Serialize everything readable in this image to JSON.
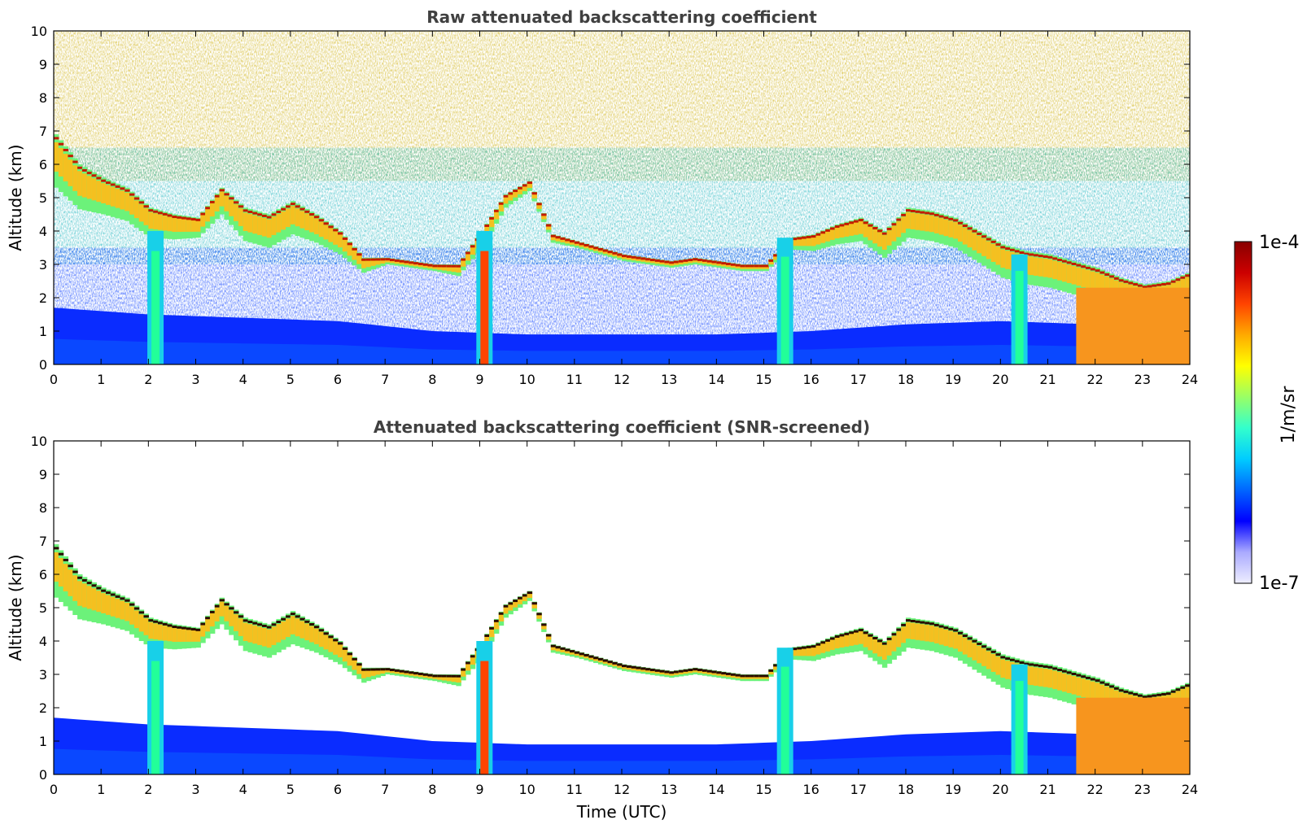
{
  "chart_data": [
    {
      "type": "heatmap",
      "title": "Raw attenuated backscattering coefficient",
      "xlabel": "",
      "ylabel": "Altitude (km)",
      "xlim": [
        0,
        24
      ],
      "ylim": [
        0,
        10
      ],
      "xticks": [
        "0",
        "1",
        "2",
        "3",
        "4",
        "5",
        "6",
        "7",
        "8",
        "9",
        "10",
        "11",
        "12",
        "13",
        "14",
        "15",
        "16",
        "17",
        "18",
        "19",
        "20",
        "21",
        "22",
        "23",
        "24"
      ],
      "yticks": [
        "0",
        "1",
        "2",
        "3",
        "4",
        "5",
        "6",
        "7",
        "8",
        "9",
        "10"
      ],
      "value_scale": "log",
      "noise_above_cloud": true,
      "cloud_layer": {
        "top_km": [
          [
            0,
            6.9
          ],
          [
            0.5,
            6.0
          ],
          [
            1,
            5.6
          ],
          [
            1.5,
            5.3
          ],
          [
            2,
            4.7
          ],
          [
            2.5,
            4.5
          ],
          [
            3,
            4.4
          ],
          [
            3.5,
            5.3
          ],
          [
            4,
            4.7
          ],
          [
            4.5,
            4.5
          ],
          [
            5,
            4.9
          ],
          [
            5.5,
            4.5
          ],
          [
            6,
            4.0
          ],
          [
            6.5,
            3.2
          ],
          [
            7,
            3.2
          ],
          [
            7.5,
            3.1
          ],
          [
            8,
            3.0
          ],
          [
            8.5,
            3.0
          ],
          [
            9,
            4.0
          ],
          [
            9.5,
            5.1
          ],
          [
            10,
            5.5
          ],
          [
            10.5,
            3.9
          ],
          [
            11,
            3.7
          ],
          [
            11.5,
            3.5
          ],
          [
            12,
            3.3
          ],
          [
            12.5,
            3.2
          ],
          [
            13,
            3.1
          ],
          [
            13.5,
            3.2
          ],
          [
            14,
            3.1
          ],
          [
            14.5,
            3.0
          ],
          [
            15,
            3.0
          ],
          [
            15.5,
            3.8
          ],
          [
            16,
            3.9
          ],
          [
            16.5,
            4.2
          ],
          [
            17,
            4.4
          ],
          [
            17.5,
            4.0
          ],
          [
            18,
            4.7
          ],
          [
            18.5,
            4.6
          ],
          [
            19,
            4.4
          ],
          [
            19.5,
            4.0
          ],
          [
            20,
            3.6
          ],
          [
            20.5,
            3.4
          ],
          [
            21,
            3.3
          ],
          [
            21.5,
            3.1
          ],
          [
            22,
            2.9
          ],
          [
            22.5,
            2.6
          ],
          [
            23,
            2.4
          ],
          [
            23.5,
            2.5
          ],
          [
            24,
            2.8
          ]
        ],
        "thickness_km": [
          [
            0,
            1.6
          ],
          [
            1,
            1.1
          ],
          [
            2,
            0.9
          ],
          [
            3,
            0.6
          ],
          [
            4,
            1.0
          ],
          [
            5,
            1.0
          ],
          [
            6,
            0.7
          ],
          [
            7,
            0.2
          ],
          [
            8,
            0.2
          ],
          [
            9,
            0.5
          ],
          [
            10,
            0.3
          ],
          [
            11,
            0.2
          ],
          [
            12,
            0.2
          ],
          [
            13,
            0.2
          ],
          [
            14,
            0.2
          ],
          [
            15,
            0.2
          ],
          [
            16,
            0.5
          ],
          [
            17,
            0.7
          ],
          [
            18,
            0.9
          ],
          [
            19,
            0.9
          ],
          [
            20,
            1.0
          ],
          [
            21,
            1.0
          ],
          [
            22,
            1.0
          ],
          [
            23,
            0.8
          ],
          [
            24,
            0.8
          ]
        ]
      }
    },
    {
      "type": "heatmap",
      "title": "Attenuated backscattering coefficient (SNR-screened)",
      "xlabel": "Time (UTC)",
      "ylabel": "Altitude (km)",
      "xlim": [
        0,
        24
      ],
      "ylim": [
        0,
        10
      ],
      "xticks": [
        "0",
        "1",
        "2",
        "3",
        "4",
        "5",
        "6",
        "7",
        "8",
        "9",
        "10",
        "11",
        "12",
        "13",
        "14",
        "15",
        "16",
        "17",
        "18",
        "19",
        "20",
        "21",
        "22",
        "23",
        "24"
      ],
      "yticks": [
        "0",
        "1",
        "2",
        "3",
        "4",
        "5",
        "6",
        "7",
        "8",
        "9",
        "10"
      ],
      "value_scale": "log",
      "noise_above_cloud": false,
      "cloud_layer": {
        "top_km": [
          [
            0,
            6.9
          ],
          [
            0.5,
            6.0
          ],
          [
            1,
            5.6
          ],
          [
            1.5,
            5.3
          ],
          [
            2,
            4.7
          ],
          [
            2.5,
            4.5
          ],
          [
            3,
            4.4
          ],
          [
            3.5,
            5.3
          ],
          [
            4,
            4.7
          ],
          [
            4.5,
            4.5
          ],
          [
            5,
            4.9
          ],
          [
            5.5,
            4.5
          ],
          [
            6,
            4.0
          ],
          [
            6.5,
            3.2
          ],
          [
            7,
            3.2
          ],
          [
            7.5,
            3.1
          ],
          [
            8,
            3.0
          ],
          [
            8.5,
            3.0
          ],
          [
            9,
            4.0
          ],
          [
            9.5,
            5.1
          ],
          [
            10,
            5.5
          ],
          [
            10.5,
            3.9
          ],
          [
            11,
            3.7
          ],
          [
            11.5,
            3.5
          ],
          [
            12,
            3.3
          ],
          [
            12.5,
            3.2
          ],
          [
            13,
            3.1
          ],
          [
            13.5,
            3.2
          ],
          [
            14,
            3.1
          ],
          [
            14.5,
            3.0
          ],
          [
            15,
            3.0
          ],
          [
            15.5,
            3.8
          ],
          [
            16,
            3.9
          ],
          [
            16.5,
            4.2
          ],
          [
            17,
            4.4
          ],
          [
            17.5,
            4.0
          ],
          [
            18,
            4.7
          ],
          [
            18.5,
            4.6
          ],
          [
            19,
            4.4
          ],
          [
            19.5,
            4.0
          ],
          [
            20,
            3.6
          ],
          [
            20.5,
            3.4
          ],
          [
            21,
            3.3
          ],
          [
            21.5,
            3.1
          ],
          [
            22,
            2.9
          ],
          [
            22.5,
            2.6
          ],
          [
            23,
            2.4
          ],
          [
            23.5,
            2.5
          ],
          [
            24,
            2.8
          ]
        ],
        "thickness_km": [
          [
            0,
            1.6
          ],
          [
            1,
            1.1
          ],
          [
            2,
            0.9
          ],
          [
            3,
            0.6
          ],
          [
            4,
            1.0
          ],
          [
            5,
            1.0
          ],
          [
            6,
            0.7
          ],
          [
            7,
            0.2
          ],
          [
            8,
            0.2
          ],
          [
            9,
            0.5
          ],
          [
            10,
            0.3
          ],
          [
            11,
            0.2
          ],
          [
            12,
            0.2
          ],
          [
            13,
            0.2
          ],
          [
            14,
            0.2
          ],
          [
            15,
            0.2
          ],
          [
            16,
            0.5
          ],
          [
            17,
            0.7
          ],
          [
            18,
            0.9
          ],
          [
            19,
            0.9
          ],
          [
            20,
            1.0
          ],
          [
            21,
            1.0
          ],
          [
            22,
            1.0
          ],
          [
            23,
            0.8
          ],
          [
            24,
            0.8
          ]
        ]
      }
    }
  ],
  "colorbar": {
    "label": "1/m/sr",
    "max_label": "1e-4",
    "min_label": "1e-7",
    "colormap": "jet",
    "stops": [
      "#eeeeff",
      "#aaaaff",
      "#0000ff",
      "#0066ff",
      "#00ccff",
      "#33ffcc",
      "#99ff66",
      "#ffff00",
      "#ffaa00",
      "#ff4400",
      "#cc0000",
      "#880000"
    ]
  },
  "boundary_layer": {
    "top_km": [
      [
        0,
        1.7
      ],
      [
        2,
        1.5
      ],
      [
        4,
        1.4
      ],
      [
        6,
        1.3
      ],
      [
        8,
        1.0
      ],
      [
        10,
        0.9
      ],
      [
        12,
        0.9
      ],
      [
        14,
        0.9
      ],
      [
        16,
        1.0
      ],
      [
        18,
        1.2
      ],
      [
        20,
        1.3
      ],
      [
        22,
        1.2
      ],
      [
        24,
        1.0
      ]
    ]
  },
  "precip_columns": [
    {
      "t": 2.15,
      "from_km": 4.0
    },
    {
      "t": 9.1,
      "from_km": 4.0
    },
    {
      "t": 15.45,
      "from_km": 3.8
    },
    {
      "t": 20.4,
      "from_km": 3.3
    }
  ]
}
